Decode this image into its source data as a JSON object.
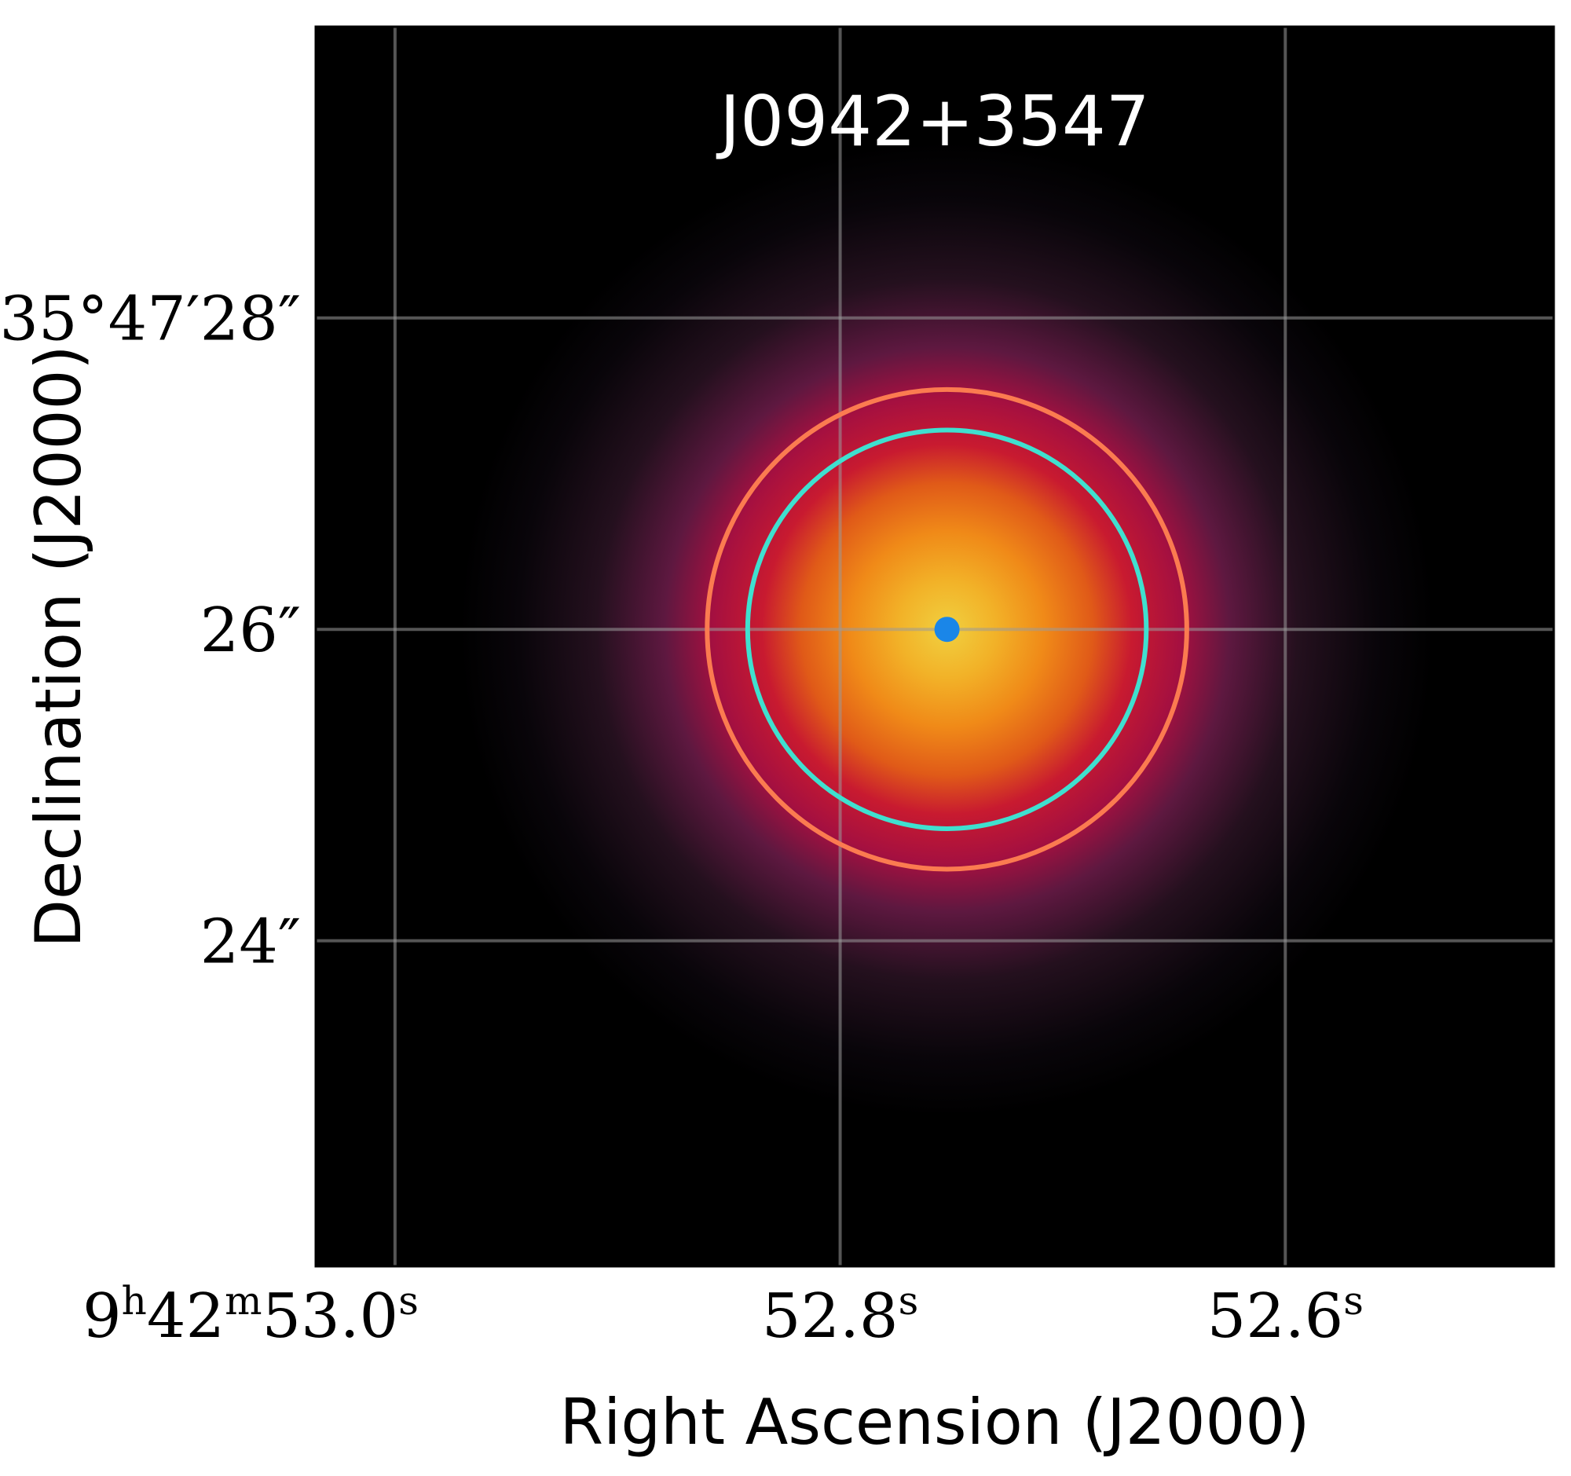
{
  "figure": {
    "title": "J0942+3547",
    "xlabel": "Right Ascension (J2000)",
    "ylabel": "Declination (J2000)",
    "colormap": "inferno",
    "grid": true,
    "grid_color": "#9a9a9a"
  },
  "axes": {
    "ra": {
      "ticks": [
        {
          "value_s": 53.0,
          "parts": [
            [
              "9",
              "h"
            ],
            [
              "42",
              "m"
            ],
            [
              "53.0",
              "s"
            ]
          ]
        },
        {
          "value_s": 52.8,
          "parts": [
            [
              "52.8",
              "s"
            ]
          ]
        },
        {
          "value_s": 52.6,
          "parts": [
            [
              "52.6",
              "s"
            ]
          ]
        }
      ],
      "range_s": [
        53.0356,
        52.4794
      ]
    },
    "dec": {
      "ticks": [
        {
          "value_arcsec": 28,
          "label": "35°47′28″"
        },
        {
          "value_arcsec": 26,
          "label": "26″"
        },
        {
          "value_arcsec": 24,
          "label": "24″"
        }
      ],
      "range_arcsec": [
        21.91,
        29.87
      ]
    }
  },
  "source": {
    "ra_s": 52.752,
    "dec_arcsec": 26.0,
    "nucleus_color": "#1a86e8"
  },
  "apertures": [
    {
      "name": "outer",
      "color": "#fb7b50",
      "radius_arcsec": 1.54
    },
    {
      "name": "inner",
      "color": "#3fe0cf",
      "radius_arcsec": 1.28
    }
  ]
}
